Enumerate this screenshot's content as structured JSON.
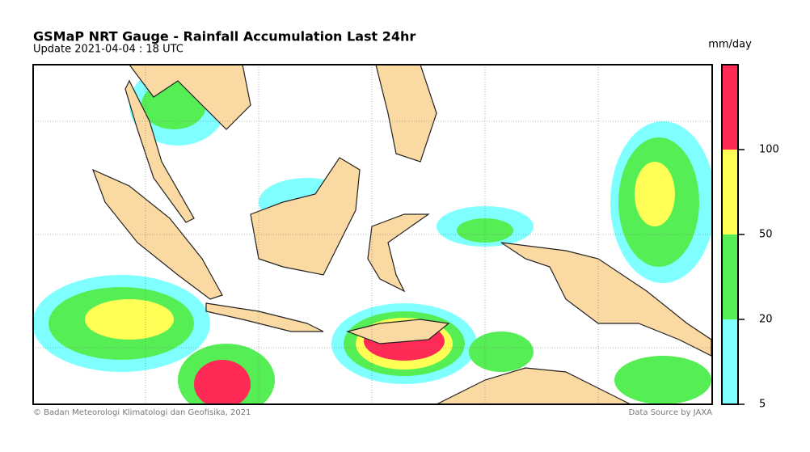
{
  "title": "GSMaP NRT Gauge - Rainfall Accumulation Last 24hr",
  "subtitle": "Update 2021-04-04 : 18 UTC",
  "colorbar": {
    "unit": "mm/day",
    "ticks": [
      5,
      20,
      50,
      100
    ],
    "colors": [
      "#7fffff",
      "#55ee55",
      "#ffff55",
      "#ff2a55"
    ]
  },
  "footer": {
    "left": "© Badan Meteorologi Klimatologi dan Geofisika, 2021",
    "right": "Data Source by JAXA"
  }
}
